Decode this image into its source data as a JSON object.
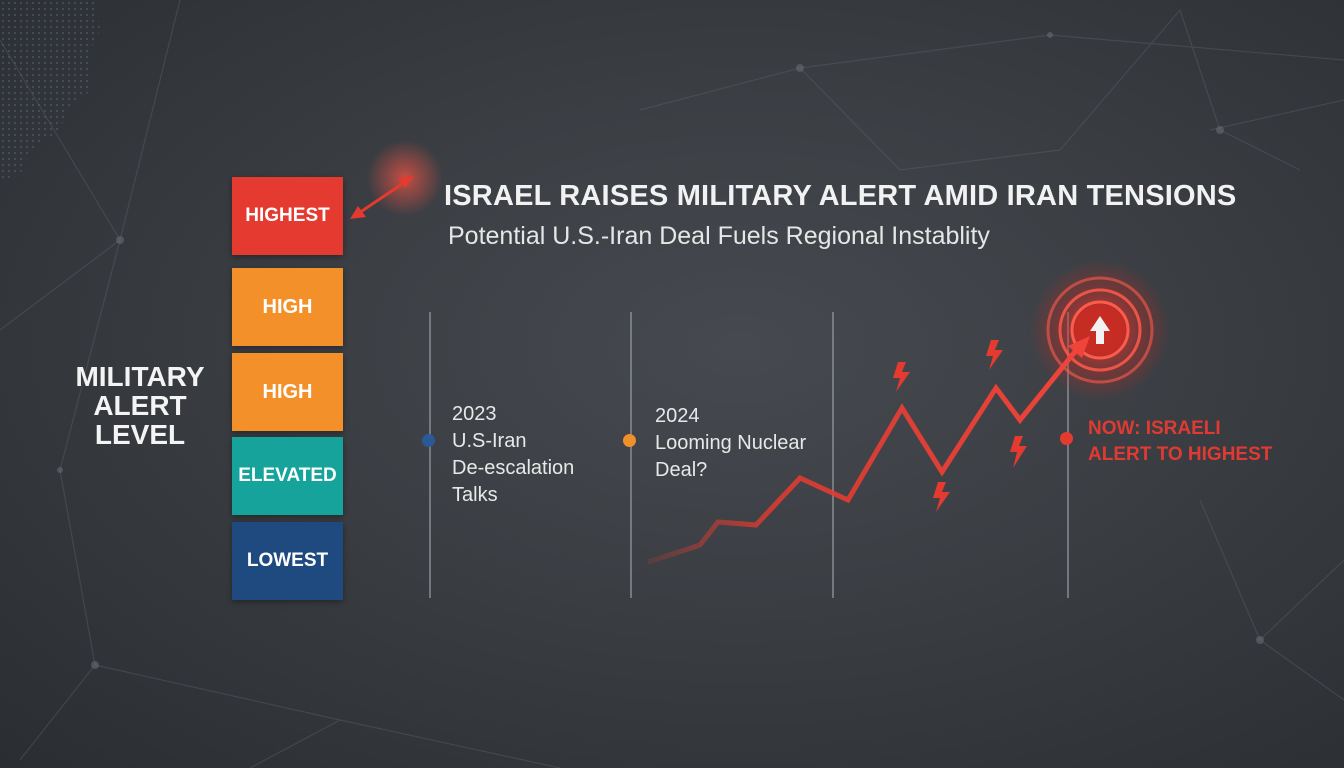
{
  "header": {
    "title": "ISRAEL RAISES MILITARY ALERT AMID IRAN TENSIONS",
    "subtitle": "Potential U.S.-Iran Deal Fuels Regional Instablity"
  },
  "alert_scale": {
    "label_lines": [
      "MILITARY",
      "ALERT",
      "LEVEL"
    ],
    "levels": [
      {
        "label": "HIGHEST",
        "color": "#e53a2f"
      },
      {
        "label": "HIGH",
        "color": "#f3902a"
      },
      {
        "label": "HIGH",
        "color": "#f3902a"
      },
      {
        "label": "ELEVATED",
        "color": "#16a39b"
      },
      {
        "label": "LOWEST",
        "color": "#1e4a80"
      }
    ]
  },
  "timeline": {
    "events": [
      {
        "lines": [
          "2023",
          "U.S-Iran",
          "De-escalation",
          "Talks"
        ],
        "dot_color": "#2a5a96"
      },
      {
        "lines": [
          "2024",
          "Looming Nuclear",
          "Deal?"
        ],
        "dot_color": "#f0902a"
      }
    ],
    "now": {
      "lines": [
        "NOW: ISRAELI",
        "ALERT TO HIGHEST"
      ],
      "dot_color": "#e53a2f"
    }
  },
  "colors": {
    "accent_red": "#e53a2f",
    "background": "#3a3d42"
  },
  "icons": {
    "trend_arrow": "up-arrow-icon",
    "spikes": "lightning-icon"
  }
}
